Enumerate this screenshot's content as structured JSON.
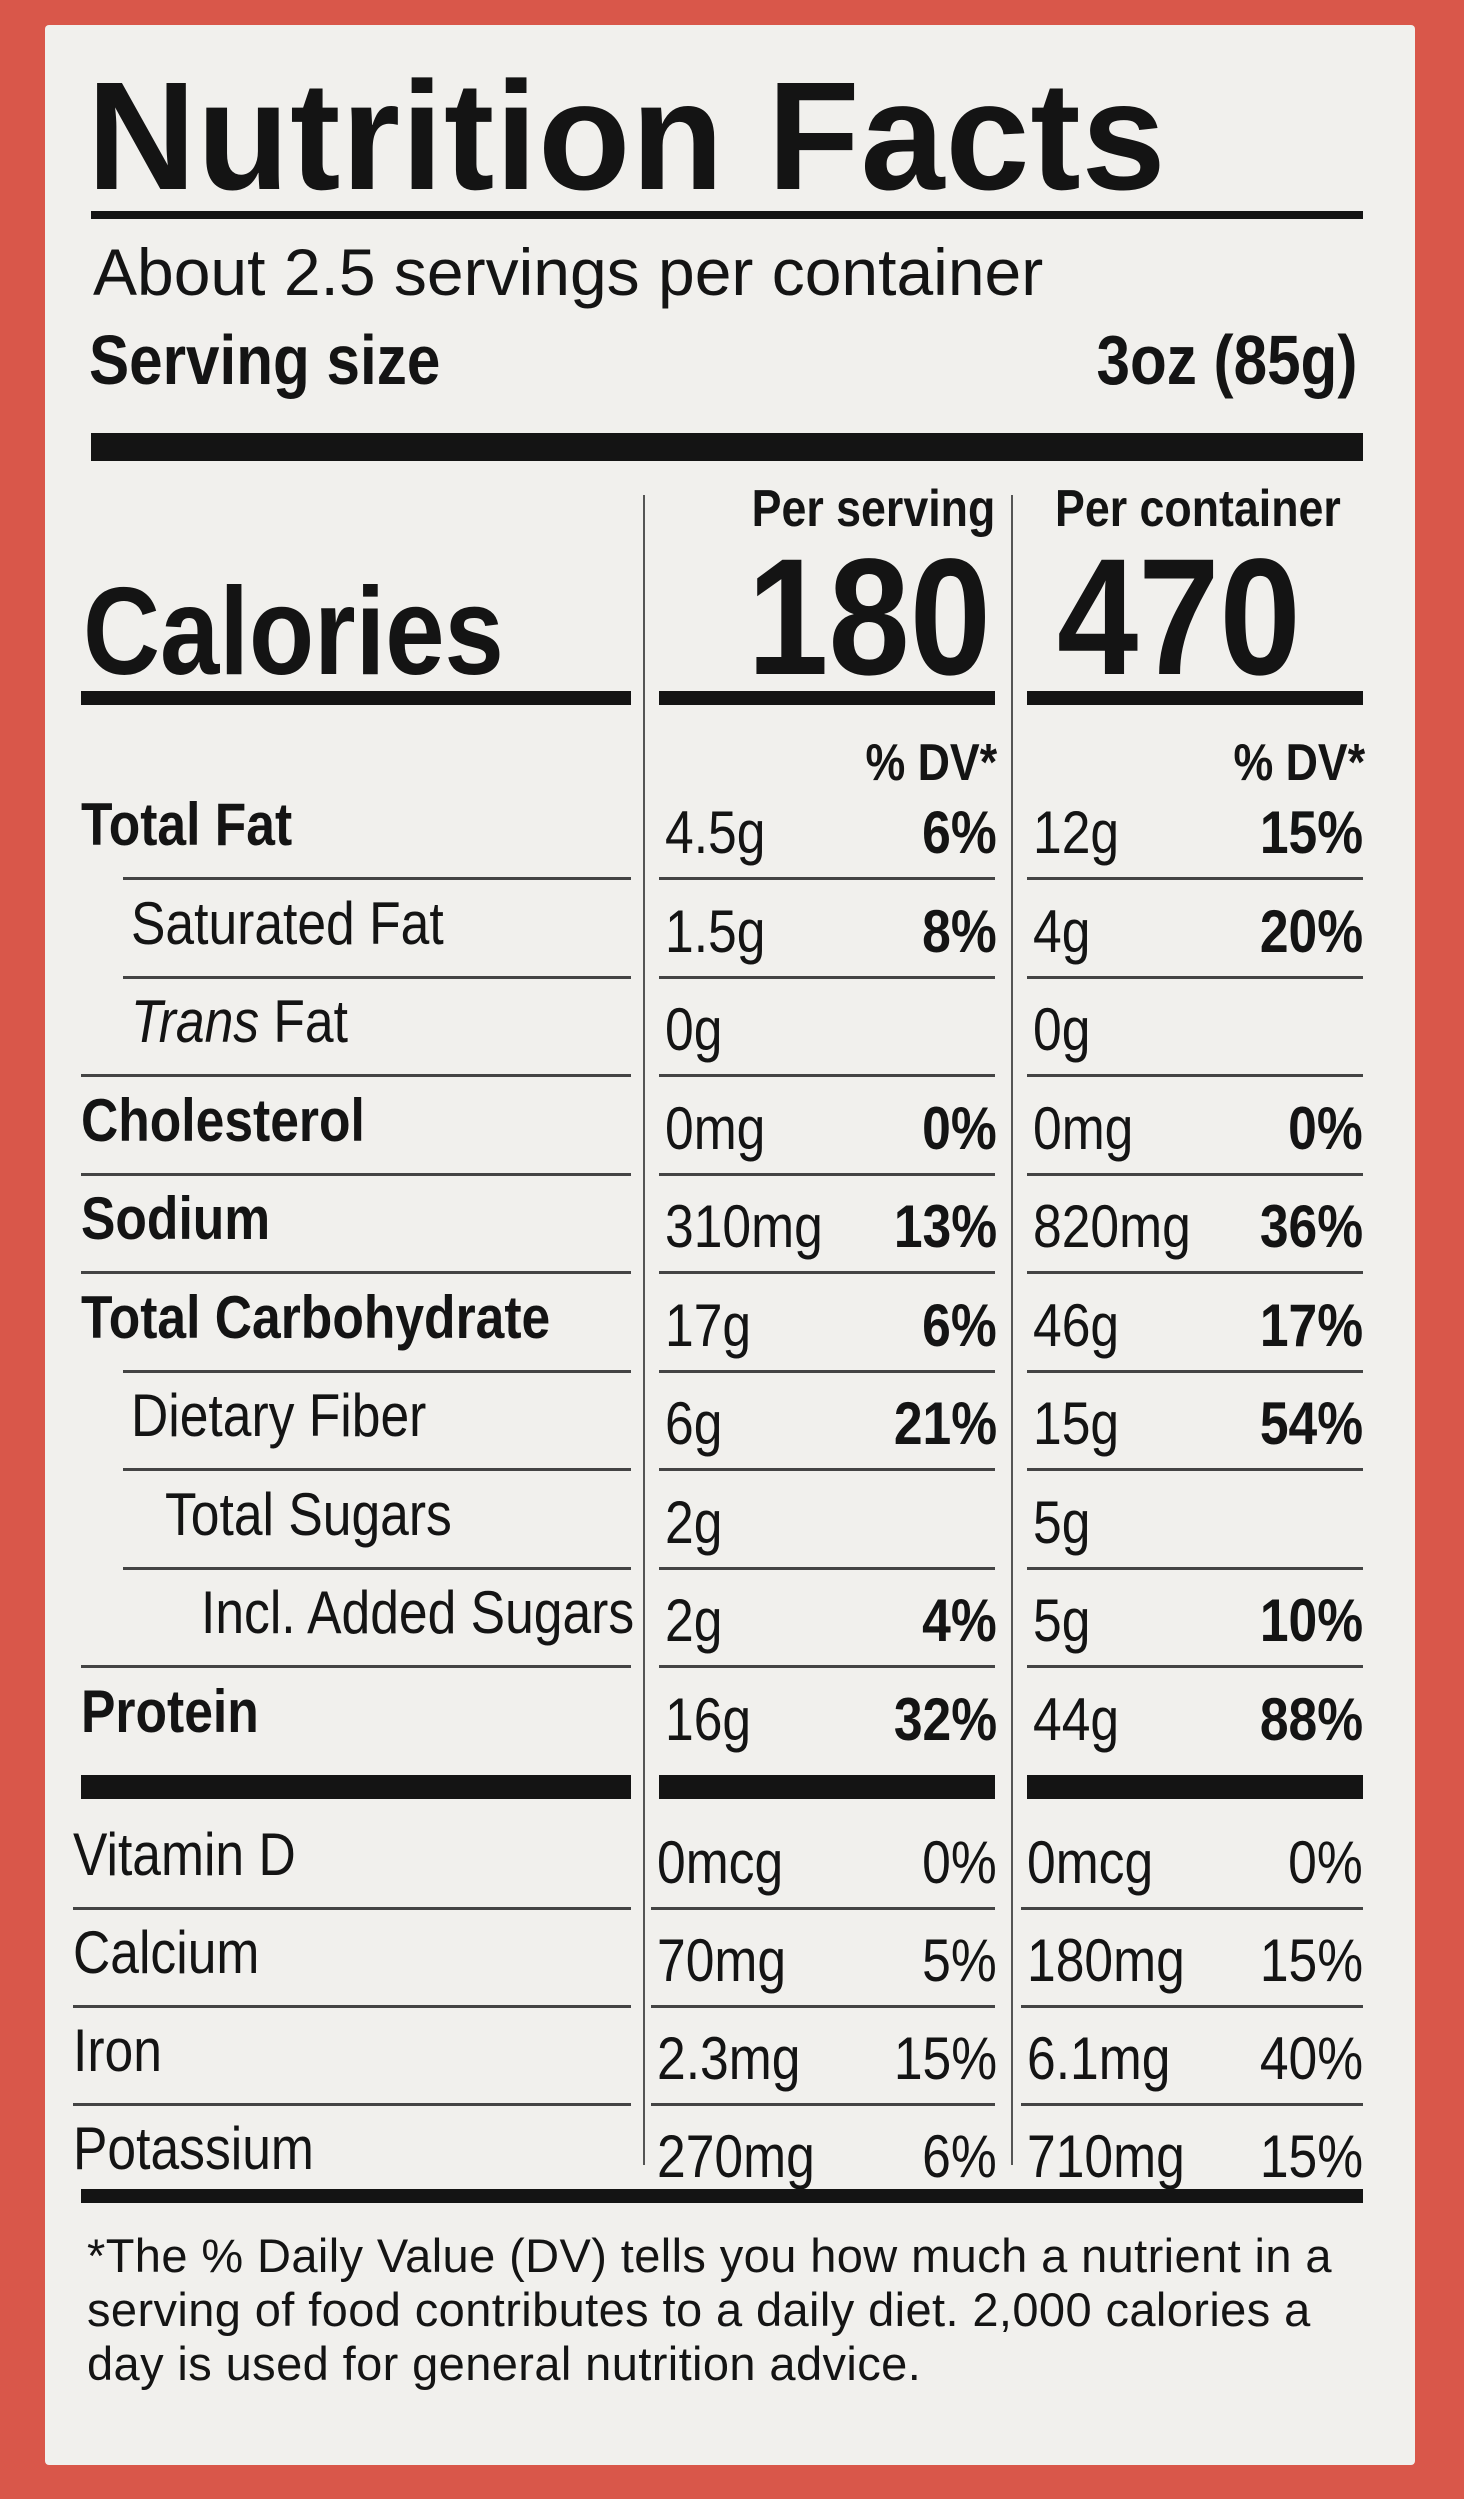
{
  "title": "Nutrition Facts",
  "servings_per_container": "About 2.5 servings per container",
  "serving_size_label": "Serving size",
  "serving_size_value": "3oz (85g)",
  "column_headers": {
    "per_serving": "Per serving",
    "per_container": "Per container"
  },
  "calories": {
    "label": "Calories",
    "per_serving": "180",
    "per_container": "470"
  },
  "dv_header": "% DV*",
  "nutrients": [
    {
      "label": "Total Fat",
      "serving_amount": "4.5g",
      "serving_dv": "6%",
      "container_amount": "12g",
      "container_dv": "15%"
    },
    {
      "label": "Saturated Fat",
      "serving_amount": "1.5g",
      "serving_dv": "8%",
      "container_amount": "4g",
      "container_dv": "20%"
    },
    {
      "label_italic": "Trans",
      "label": "Fat",
      "serving_amount": "0g",
      "serving_dv": "",
      "container_amount": "0g",
      "container_dv": ""
    },
    {
      "label": "Cholesterol",
      "serving_amount": "0mg",
      "serving_dv": "0%",
      "container_amount": "0mg",
      "container_dv": "0%"
    },
    {
      "label": "Sodium",
      "serving_amount": "310mg",
      "serving_dv": "13%",
      "container_amount": "820mg",
      "container_dv": "36%"
    },
    {
      "label": "Total Carbohydrate",
      "serving_amount": "17g",
      "serving_dv": "6%",
      "container_amount": "46g",
      "container_dv": "17%"
    },
    {
      "label": "Dietary Fiber",
      "serving_amount": "6g",
      "serving_dv": "21%",
      "container_amount": "15g",
      "container_dv": "54%"
    },
    {
      "label": "Total Sugars",
      "serving_amount": "2g",
      "serving_dv": "",
      "container_amount": "5g",
      "container_dv": ""
    },
    {
      "label": "Incl. Added Sugars",
      "serving_amount": "2g",
      "serving_dv": "4%",
      "container_amount": "5g",
      "container_dv": "10%"
    },
    {
      "label": "Protein",
      "serving_amount": "16g",
      "serving_dv": "32%",
      "container_amount": "44g",
      "container_dv": "88%"
    }
  ],
  "vitamins": [
    {
      "label": "Vitamin D",
      "serving_amount": "0mcg",
      "serving_dv": "0%",
      "container_amount": "0mcg",
      "container_dv": "0%"
    },
    {
      "label": "Calcium",
      "serving_amount": "70mg",
      "serving_dv": "5%",
      "container_amount": "180mg",
      "container_dv": "15%"
    },
    {
      "label": "Iron",
      "serving_amount": "2.3mg",
      "serving_dv": "15%",
      "container_amount": "6.1mg",
      "container_dv": "40%"
    },
    {
      "label": "Potassium",
      "serving_amount": "270mg",
      "serving_dv": "6%",
      "container_amount": "710mg",
      "container_dv": "15%"
    }
  ],
  "footnote": "*The % Daily Value (DV) tells you how much a nutrient in a serving of food contributes to a daily diet. 2,000 calories a day is used for general nutrition advice.",
  "colors": {
    "package_background": "#d9574a",
    "label_background": "#f1f0ed",
    "ink": "#141414"
  }
}
